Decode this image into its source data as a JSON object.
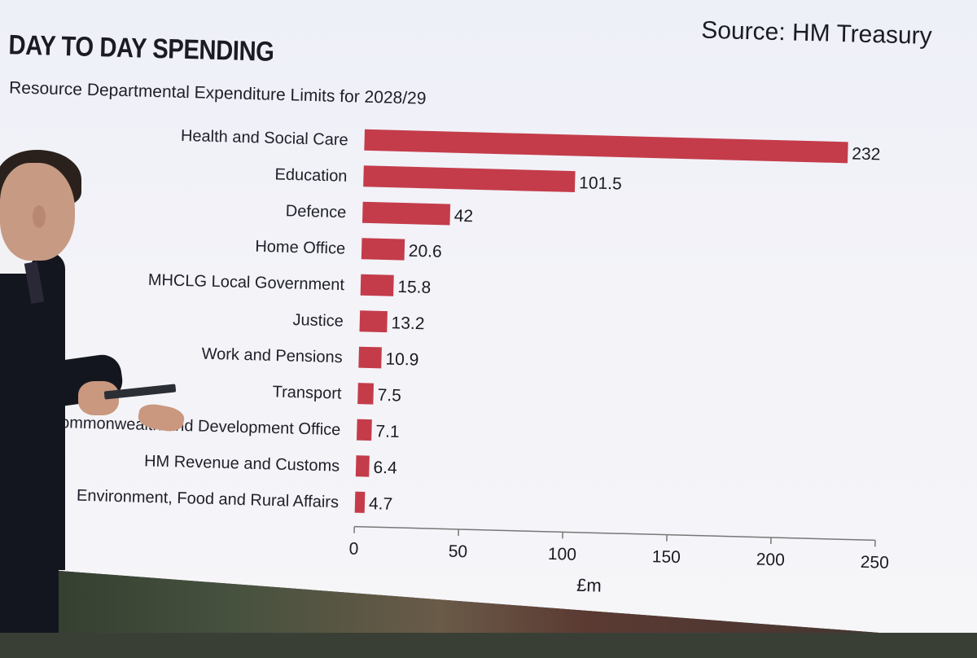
{
  "chart_data": {
    "type": "bar",
    "orientation": "horizontal",
    "title": "DAY TO DAY SPENDING",
    "subtitle": "Resource Departmental Expenditure Limits for 2028/29",
    "source": "Source: HM Treasury",
    "categories": [
      "Health and Social Care",
      "Education",
      "Defence",
      "Home Office",
      "MHCLG Local Government",
      "Justice",
      "Work and Pensions",
      "Transport",
      "Foreign, Commonwealth and Development Office",
      "HM Revenue and Customs",
      "Environment, Food and Rural Affairs"
    ],
    "value_labels": [
      "232",
      "101.5",
      "42",
      "20.6",
      "15.8",
      "13.2",
      "10.9",
      "7.5",
      "7.1",
      "6.4",
      "4.7"
    ],
    "values": [
      232,
      101.5,
      42,
      20.6,
      15.8,
      13.2,
      10.9,
      7.5,
      7.1,
      6.4,
      4.7
    ],
    "xlabel": "£m",
    "xlim": [
      0,
      250
    ],
    "xticks": [
      0,
      50,
      100,
      150,
      200,
      250
    ],
    "bar_color": "#c43c4a",
    "grid": false
  }
}
